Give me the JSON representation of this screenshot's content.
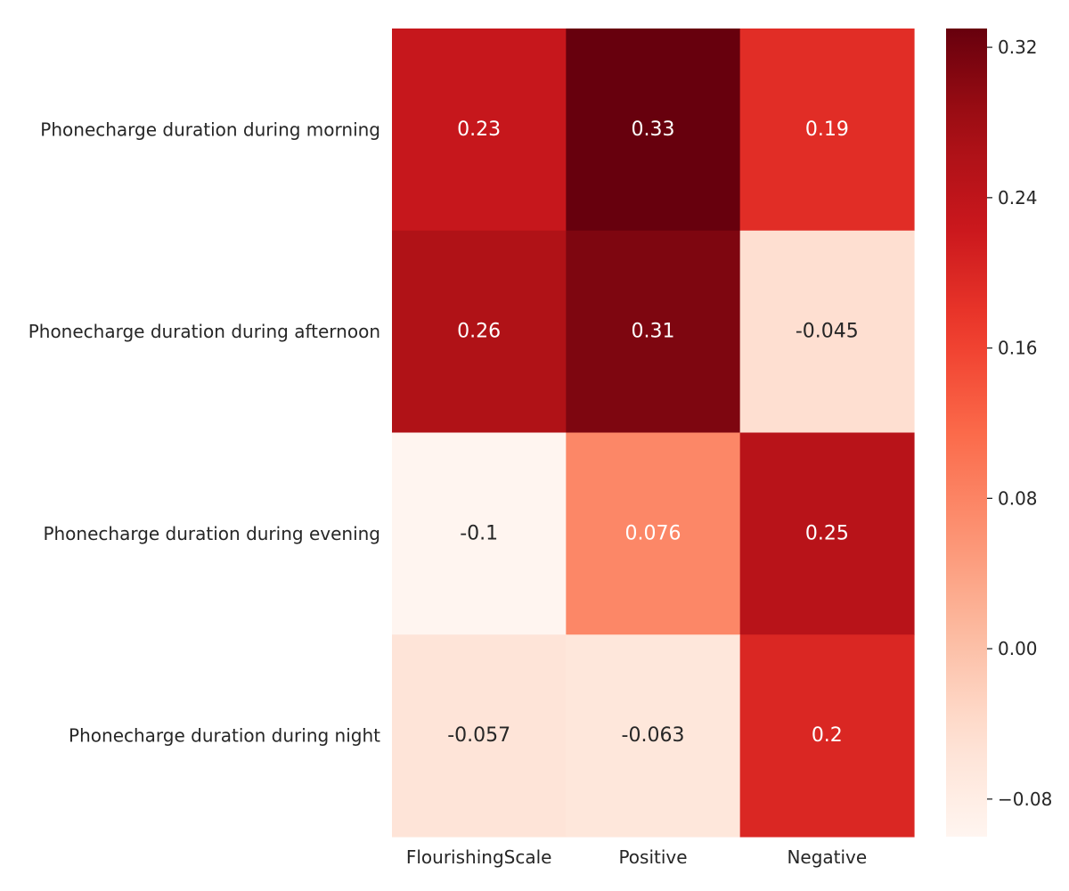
{
  "chart_data": {
    "type": "heatmap",
    "title": "",
    "xlabel": "",
    "ylabel": "",
    "columns": [
      "FlourishingScale",
      "Positive",
      "Negative"
    ],
    "rows": [
      "Phonecharge duration during morning",
      "Phonecharge duration during afternoon",
      "Phonecharge duration during evening",
      "Phonecharge duration during night"
    ],
    "values": [
      [
        0.23,
        0.33,
        0.19
      ],
      [
        0.26,
        0.31,
        -0.045
      ],
      [
        -0.1,
        0.076,
        0.25
      ],
      [
        -0.057,
        -0.063,
        0.2
      ]
    ],
    "cell_labels": [
      [
        "0.23",
        "0.33",
        "0.19"
      ],
      [
        "0.26",
        "0.31",
        "-0.045"
      ],
      [
        "-0.1",
        "0.076",
        "0.25"
      ],
      [
        "-0.057",
        "-0.063",
        "0.2"
      ]
    ],
    "colormap": "Reds",
    "colorbar": {
      "vmin": -0.1,
      "vmax": 0.33,
      "ticks": [
        -0.08,
        0.0,
        0.08,
        0.16,
        0.24,
        0.32
      ],
      "tick_labels": [
        "−0.08",
        "0.00",
        "0.08",
        "0.16",
        "0.24",
        "0.32"
      ]
    },
    "grid": false,
    "legend": "colorbar-right"
  }
}
